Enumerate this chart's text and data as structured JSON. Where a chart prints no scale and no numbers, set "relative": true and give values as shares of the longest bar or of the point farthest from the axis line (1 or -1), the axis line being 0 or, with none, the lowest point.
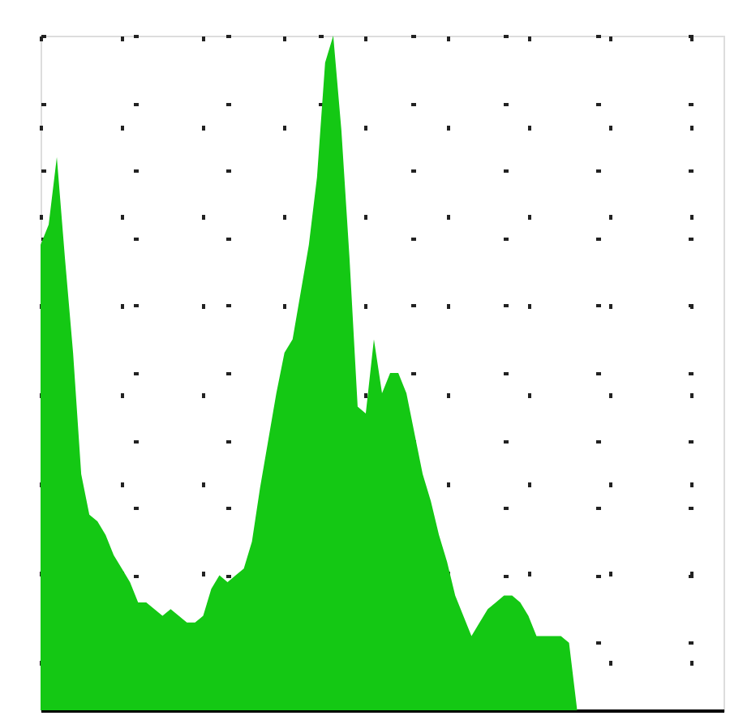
{
  "chart_data": {
    "type": "area",
    "relative": true,
    "grid": true,
    "color": "#14c814",
    "categories": [
      null,
      null,
      null,
      null,
      null,
      null,
      null,
      null,
      null,
      null,
      null,
      null,
      null,
      null,
      null,
      null,
      null,
      null,
      null,
      null,
      null,
      null,
      null,
      null,
      null,
      null,
      null,
      null,
      null,
      null,
      null,
      null,
      null,
      null,
      null,
      null,
      null,
      null,
      null,
      null,
      null,
      null,
      null,
      null,
      null,
      null,
      null,
      null,
      null,
      null,
      null,
      null,
      null,
      null,
      null,
      null,
      null,
      null,
      null,
      null,
      null,
      null,
      null,
      null,
      null,
      null,
      null,
      null,
      null,
      null,
      null,
      null,
      null,
      null,
      null,
      null,
      null,
      null,
      null,
      null,
      null,
      null,
      null,
      null,
      null
    ],
    "values": [
      0.69,
      0.72,
      0.82,
      0.67,
      0.53,
      0.35,
      0.29,
      0.28,
      0.26,
      0.23,
      0.21,
      0.19,
      0.16,
      0.16,
      0.15,
      0.14,
      0.15,
      0.14,
      0.13,
      0.13,
      0.14,
      0.18,
      0.2,
      0.19,
      0.2,
      0.21,
      0.25,
      0.33,
      0.4,
      0.47,
      0.53,
      0.55,
      0.62,
      0.69,
      0.79,
      0.96,
      1,
      0.86,
      0.67,
      0.45,
      0.44,
      0.55,
      0.47,
      0.5,
      0.5,
      0.47,
      0.41,
      0.35,
      0.31,
      0.26,
      0.22,
      0.17,
      0.14,
      0.11,
      0.13,
      0.15,
      0.16,
      0.17,
      0.17,
      0.16,
      0.14,
      0.11,
      0.11,
      0.11,
      0.11,
      0.1,
      0,
      null,
      null,
      null,
      null,
      null,
      null,
      null,
      null,
      null,
      null,
      null,
      null,
      null,
      null,
      null,
      null,
      null,
      null
    ]
  }
}
